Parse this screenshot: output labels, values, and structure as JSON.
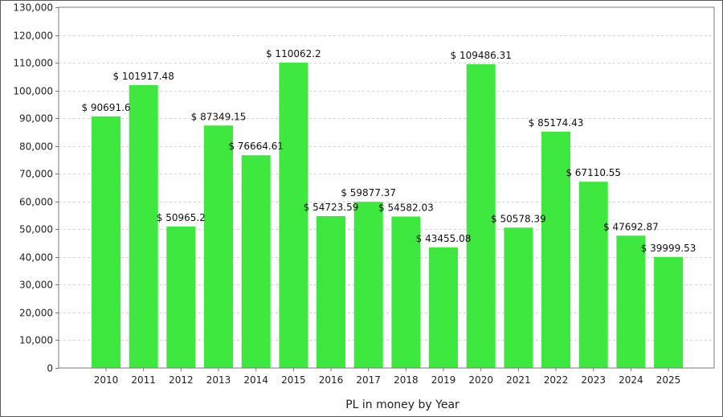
{
  "chart_data": {
    "type": "bar",
    "title": "",
    "xlabel": "PL in money by Year",
    "ylabel": "",
    "ylim": [
      0,
      130000
    ],
    "y_ticks": [
      0,
      10000,
      20000,
      30000,
      40000,
      50000,
      60000,
      70000,
      80000,
      90000,
      100000,
      110000,
      120000,
      130000
    ],
    "y_tick_labels": [
      "0",
      "10,000",
      "20,000",
      "30,000",
      "40,000",
      "50,000",
      "60,000",
      "70,000",
      "80,000",
      "90,000",
      "100,000",
      "110,000",
      "120,000",
      "130,000"
    ],
    "categories": [
      "2010",
      "2011",
      "2012",
      "2013",
      "2014",
      "2015",
      "2016",
      "2017",
      "2018",
      "2019",
      "2020",
      "2021",
      "2022",
      "2023",
      "2024",
      "2025"
    ],
    "values": [
      90691.6,
      101917.48,
      50965.2,
      87349.15,
      76664.61,
      110062.2,
      54723.59,
      59877.37,
      54582.03,
      43455.08,
      109486.31,
      50578.39,
      85174.43,
      67110.55,
      47692.87,
      39999.53
    ],
    "data_labels": [
      "$ 90691.6",
      "$ 101917.48",
      "$ 50965.2",
      "$ 87349.15",
      "$ 76664.61",
      "$ 110062.2",
      "$ 54723.59",
      "$ 59877.37",
      "$ 54582.03",
      "$ 43455.08",
      "$ 109486.31",
      "$ 50578.39",
      "$ 85174.43",
      "$ 67110.55",
      "$ 47692.87",
      "$ 39999.53"
    ],
    "grid": true,
    "bar_color": "#3ee83e",
    "grid_color": "#d4d4d4",
    "axis_color": "#7a7a7a"
  }
}
